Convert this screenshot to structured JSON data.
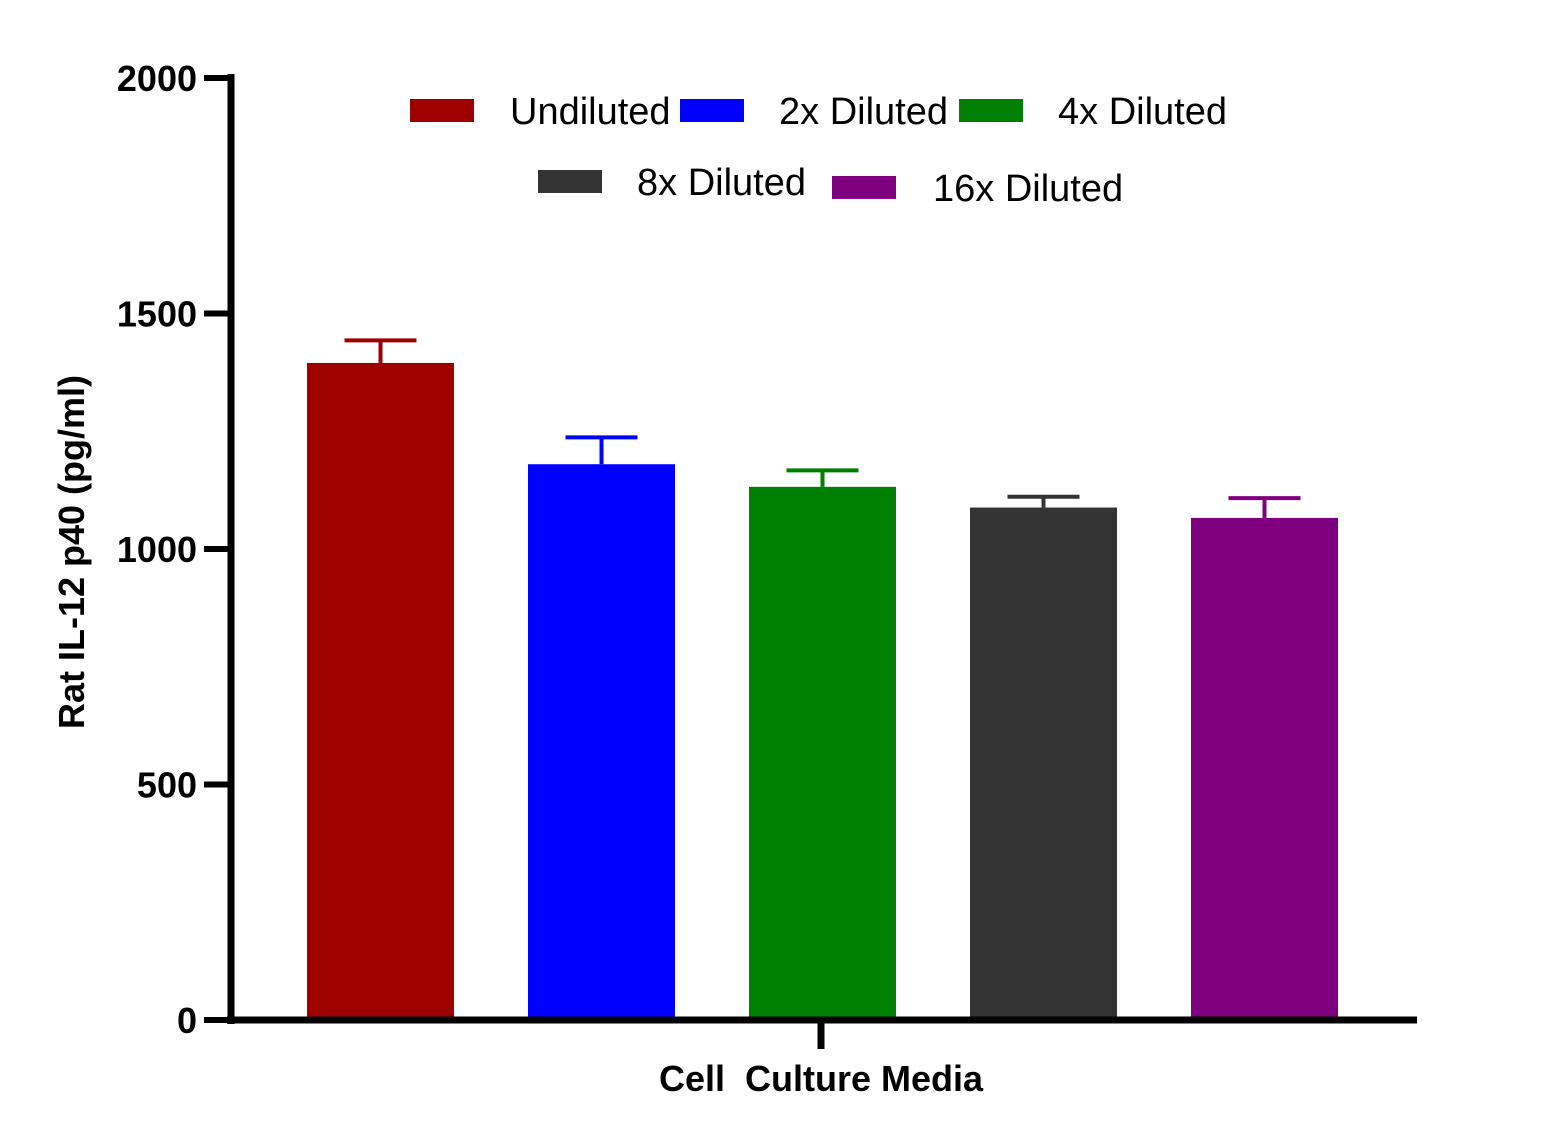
{
  "chart_data": {
    "type": "bar",
    "ylabel": "Rat IL-12 p40 (pg/ml)",
    "xlabel": "Cell  Culture Media",
    "ylim": [
      0,
      2000
    ],
    "yticks": [
      "0",
      "500",
      "1000",
      "1500",
      "2000"
    ],
    "grid": false,
    "legend_position": "top",
    "series": [
      {
        "name": "Undiluted",
        "value": 1395,
        "error": 48,
        "color": "#9e0000"
      },
      {
        "name": "2x Diluted",
        "value": 1180,
        "error": 57,
        "color": "#0000ff"
      },
      {
        "name": "4x Diluted",
        "value": 1132,
        "error": 35,
        "color": "#007f00"
      },
      {
        "name": "8x Diluted",
        "value": 1088,
        "error": 23,
        "color": "#333333"
      },
      {
        "name": "16x Diluted",
        "value": 1066,
        "error": 42,
        "color": "#7f007f"
      }
    ]
  }
}
